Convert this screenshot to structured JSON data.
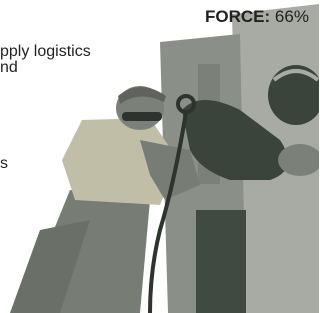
{
  "header": {
    "label": "FORCE:",
    "value": "66%"
  },
  "body_lines": [
    "pply logistics",
    "nd",
    "s"
  ]
}
